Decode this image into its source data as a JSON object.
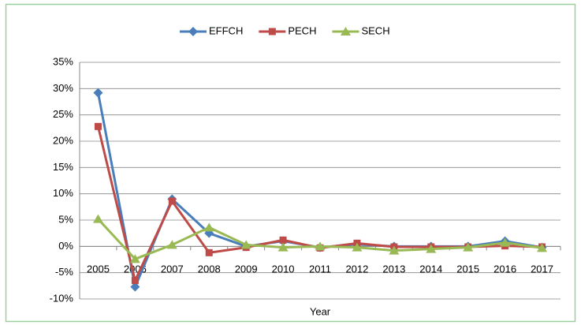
{
  "chart_data": {
    "type": "line",
    "categories": [
      "2005",
      "2006",
      "2007",
      "2008",
      "2009",
      "2010",
      "2011",
      "2012",
      "2013",
      "2014",
      "2015",
      "2016",
      "2017"
    ],
    "x_label": "Year",
    "series": [
      {
        "name": "EFFCH",
        "color": "#4a7ebb",
        "marker": "diamond",
        "values": [
          29.2,
          -7.7,
          9.0,
          2.5,
          0.0,
          1.0,
          -0.2,
          0.4,
          0.0,
          0.0,
          0.0,
          1.0,
          -0.2
        ]
      },
      {
        "name": "PECH",
        "color": "#be4b48",
        "marker": "square",
        "values": [
          22.8,
          -6.5,
          8.6,
          -1.2,
          -0.2,
          1.2,
          -0.3,
          0.6,
          -0.1,
          -0.1,
          -0.1,
          0.1,
          -0.1
        ]
      },
      {
        "name": "SECH",
        "color": "#98b954",
        "marker": "triangle",
        "values": [
          5.2,
          -2.4,
          0.3,
          3.6,
          0.3,
          -0.2,
          0.0,
          -0.2,
          -0.8,
          -0.5,
          -0.2,
          0.7,
          -0.3
        ]
      }
    ],
    "ylim": [
      -10,
      35
    ],
    "yticks": [
      {
        "value": -10,
        "label": "-10%"
      },
      {
        "value": -5,
        "label": "-5%"
      },
      {
        "value": 0,
        "label": "0%"
      },
      {
        "value": 5,
        "label": "5%"
      },
      {
        "value": 10,
        "label": "10%"
      },
      {
        "value": 15,
        "label": "15%"
      },
      {
        "value": 20,
        "label": "20%"
      },
      {
        "value": 25,
        "label": "25%"
      },
      {
        "value": 30,
        "label": "30%"
      },
      {
        "value": 35,
        "label": "35%"
      }
    ],
    "grid": true,
    "legend": "top"
  }
}
